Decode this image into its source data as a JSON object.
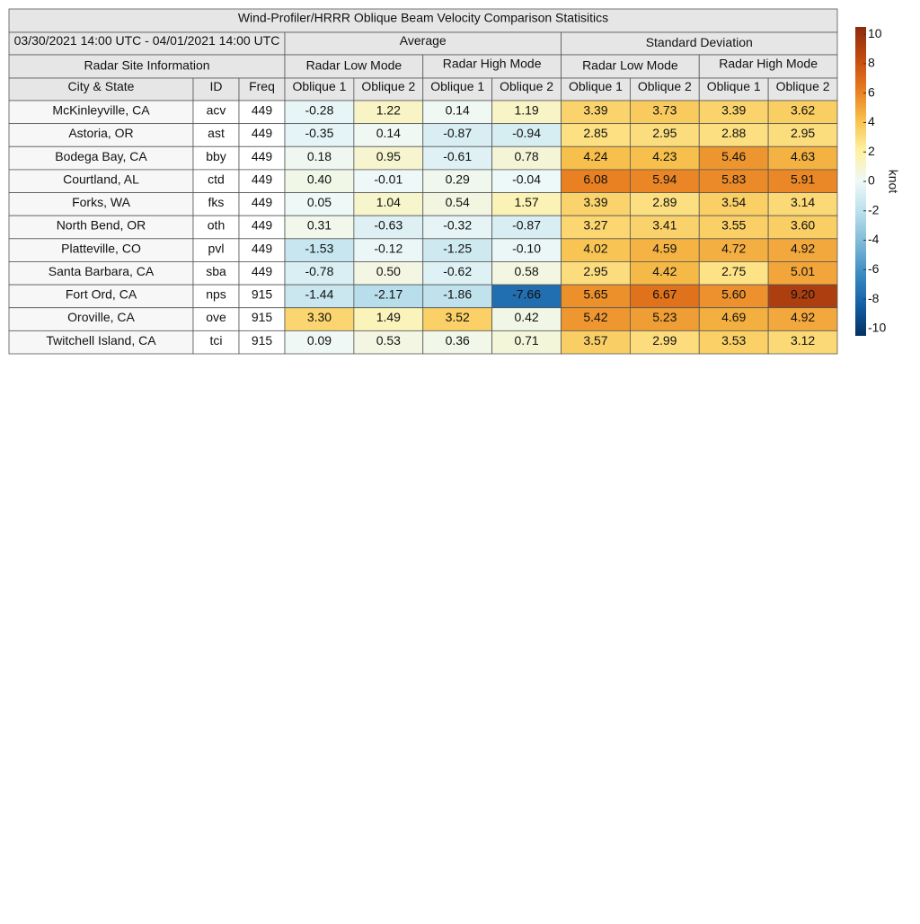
{
  "title": "Wind-Profiler/HRRR Oblique Beam Velocity Comparison Statisitics",
  "period": "03/30/2021 14:00 UTC - 04/01/2021 14:00 UTC",
  "groups": [
    "Average",
    "Standard Deviation"
  ],
  "site_info": "Radar Site Information",
  "modes": [
    "Radar Low Mode",
    "Radar High Mode",
    "Radar Low Mode",
    "Radar High Mode"
  ],
  "columns": [
    "City & State",
    "ID",
    "Freq",
    "Oblique 1",
    "Oblique 2",
    "Oblique 1",
    "Oblique 2",
    "Oblique 1",
    "Oblique 2",
    "Oblique 1",
    "Oblique 2"
  ],
  "rows": [
    [
      "McKinleyville, CA",
      "acv",
      "449",
      "-0.28",
      "1.22",
      "0.14",
      "1.19",
      "3.39",
      "3.73",
      "3.39",
      "3.62"
    ],
    [
      "Astoria, OR",
      "ast",
      "449",
      "-0.35",
      "0.14",
      "-0.87",
      "-0.94",
      "2.85",
      "2.95",
      "2.88",
      "2.95"
    ],
    [
      "Bodega Bay, CA",
      "bby",
      "449",
      "0.18",
      "0.95",
      "-0.61",
      "0.78",
      "4.24",
      "4.23",
      "5.46",
      "4.63"
    ],
    [
      "Courtland, AL",
      "ctd",
      "449",
      "0.40",
      "-0.01",
      "0.29",
      "-0.04",
      "6.08",
      "5.94",
      "5.83",
      "5.91"
    ],
    [
      "Forks, WA",
      "fks",
      "449",
      "0.05",
      "1.04",
      "0.54",
      "1.57",
      "3.39",
      "2.89",
      "3.54",
      "3.14"
    ],
    [
      "North Bend, OR",
      "oth",
      "449",
      "0.31",
      "-0.63",
      "-0.32",
      "-0.87",
      "3.27",
      "3.41",
      "3.55",
      "3.60"
    ],
    [
      "Platteville, CO",
      "pvl",
      "449",
      "-1.53",
      "-0.12",
      "-1.25",
      "-0.10",
      "4.02",
      "4.59",
      "4.72",
      "4.92"
    ],
    [
      "Santa Barbara, CA",
      "sba",
      "449",
      "-0.78",
      "0.50",
      "-0.62",
      "0.58",
      "2.95",
      "4.42",
      "2.75",
      "5.01"
    ],
    [
      "Fort Ord, CA",
      "nps",
      "915",
      "-1.44",
      "-2.17",
      "-1.86",
      "-7.66",
      "5.65",
      "6.67",
      "5.60",
      "9.20"
    ],
    [
      "Oroville, CA",
      "ove",
      "915",
      "3.30",
      "1.49",
      "3.52",
      "0.42",
      "5.42",
      "5.23",
      "4.69",
      "4.92"
    ],
    [
      "Twitchell Island, CA",
      "tci",
      "915",
      "0.09",
      "0.53",
      "0.36",
      "0.71",
      "3.57",
      "2.99",
      "3.53",
      "3.12"
    ]
  ],
  "colorbar": {
    "label": "knot",
    "lim": [
      -10.5,
      10.5
    ],
    "ticks": [
      -10,
      -8,
      -6,
      -4,
      -2,
      0,
      2,
      4,
      6,
      8,
      10
    ],
    "colors": [
      "#053061",
      "#1360a6",
      "#3b8bc2",
      "#7db9d7",
      "#b9dfeb",
      "#eef8f8",
      "#fff1a0",
      "#f7c04c",
      "#e77a1e",
      "#c24a10",
      "#8c2a0e"
    ]
  }
}
